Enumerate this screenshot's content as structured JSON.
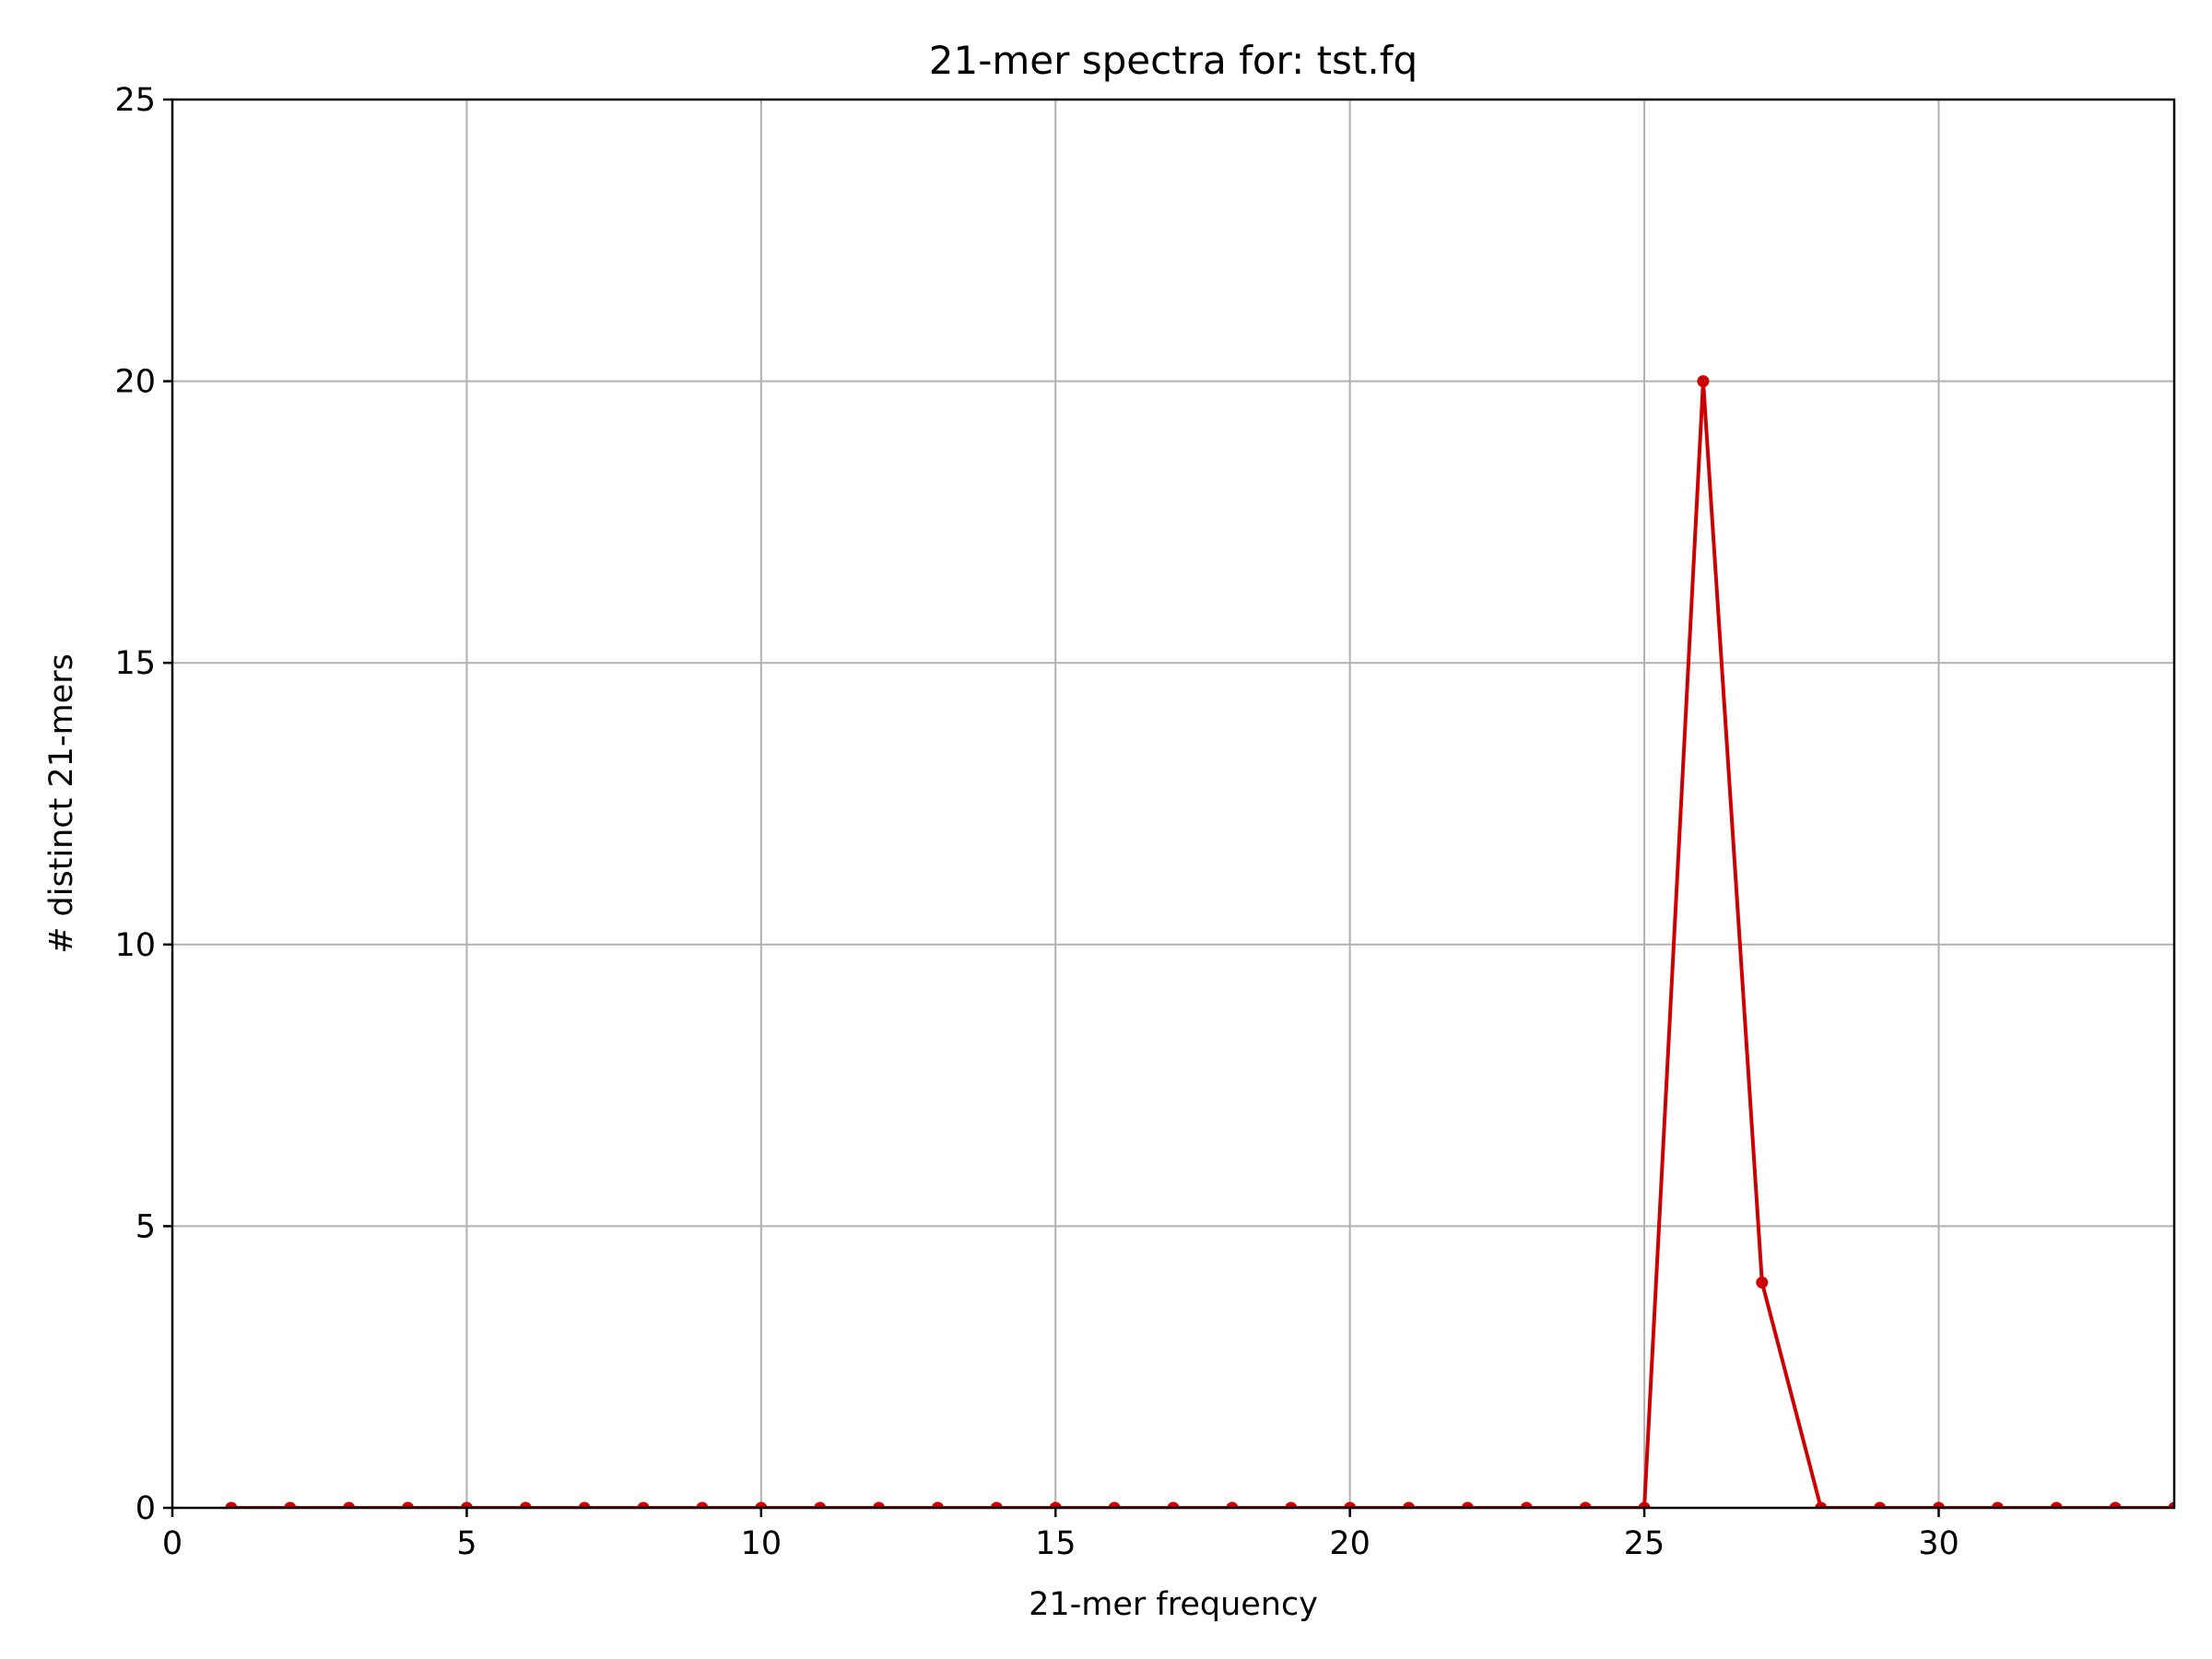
{
  "chart_data": {
    "type": "line",
    "title": "21-mer spectra for: tst.fq",
    "xlabel": "21-mer frequency",
    "ylabel": "# distinct 21-mers",
    "xlim": [
      0,
      34
    ],
    "ylim": [
      0,
      25
    ],
    "xticks": [
      0,
      5,
      10,
      15,
      20,
      25,
      30
    ],
    "yticks": [
      0,
      5,
      10,
      15,
      20,
      25
    ],
    "grid": true,
    "series": [
      {
        "color": "#cc0000",
        "marker": "circle",
        "x": [
          1,
          2,
          3,
          4,
          5,
          6,
          7,
          8,
          9,
          10,
          11,
          12,
          13,
          14,
          15,
          16,
          17,
          18,
          19,
          20,
          21,
          22,
          23,
          24,
          25,
          26,
          27,
          28,
          29,
          30,
          31,
          32,
          33,
          34
        ],
        "y": [
          0,
          0,
          0,
          0,
          0,
          0,
          0,
          0,
          0,
          0,
          0,
          0,
          0,
          0,
          0,
          0,
          0,
          0,
          0,
          0,
          0,
          0,
          0,
          0,
          0,
          20,
          4,
          0,
          0,
          0,
          0,
          0,
          0,
          0
        ]
      }
    ]
  }
}
